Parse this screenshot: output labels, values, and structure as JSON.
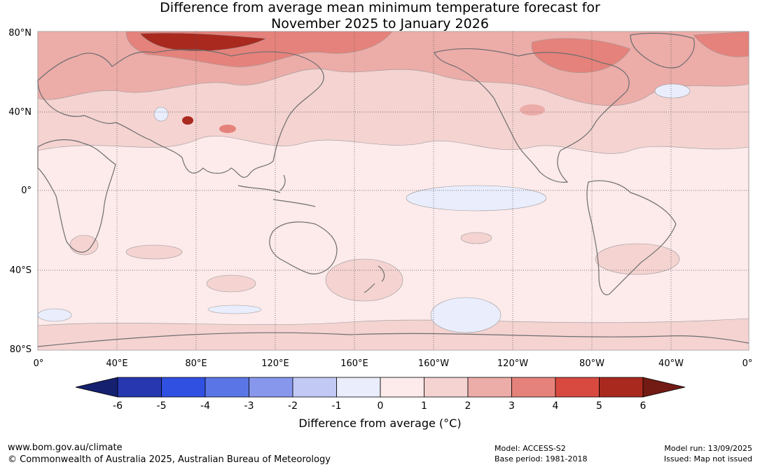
{
  "title_line1": "Difference from average mean minimum temperature forecast for",
  "title_line2": "November 2025 to January 2026",
  "lat_labels": [
    "80°N",
    "40°N",
    "0°",
    "40°S",
    "80°S"
  ],
  "lon_labels": [
    "0°",
    "40°E",
    "80°E",
    "120°E",
    "160°E",
    "160°W",
    "120°W",
    "80°W",
    "40°W",
    "0°"
  ],
  "colorbar": {
    "title": "Difference from average (°C)",
    "ticks": [
      "-6",
      "-5",
      "-4",
      "-3",
      "-2",
      "-1",
      "0",
      "1",
      "2",
      "3",
      "4",
      "5",
      "6"
    ],
    "colors": [
      "#15206e",
      "#2637b0",
      "#2f50e0",
      "#5a76e6",
      "#8797ec",
      "#c1c9f4",
      "#e9edfc",
      "#fdeaea",
      "#f4d3d1",
      "#ecaca8",
      "#e5827b",
      "#d84a40",
      "#a9291f",
      "#721b14"
    ]
  },
  "footer": {
    "url": "www.bom.gov.au/climate",
    "copyright": "© Commonwealth of Australia 2025, Australian Bureau of Meteorology",
    "model": "Model: ACCESS-S2",
    "base_period": "Base period: 1981-2018",
    "model_run": "Model run: 13/09/2025",
    "issued": "Issued: Map not issued"
  }
}
